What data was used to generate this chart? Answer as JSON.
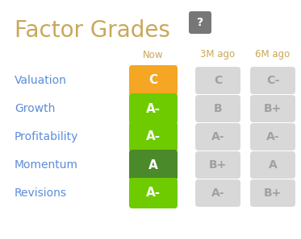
{
  "title": "Factor Grades",
  "bg_color": "#ffffff",
  "title_color": "#c8a85a",
  "label_color": "#5b8dd9",
  "header_color": "#c8a85a",
  "factors": [
    "Valuation",
    "Growth",
    "Profitability",
    "Momentum",
    "Revisions"
  ],
  "headers": [
    "Now",
    "3M ago",
    "6M ago"
  ],
  "now_grades": [
    "C",
    "A-",
    "A-",
    "A",
    "A-"
  ],
  "now_colors": [
    "#f5a623",
    "#6ecb00",
    "#6ecb00",
    "#4a8a2a",
    "#6ecb00"
  ],
  "ago3m_grades": [
    "C",
    "B",
    "A-",
    "B+",
    "A-"
  ],
  "ago6m_grades": [
    "C-",
    "B+",
    "A-",
    "A",
    "B+"
  ],
  "gray_bg": "#d8d8d8",
  "gray_text": "#a0a0a0",
  "white_text": "#ffffff",
  "qmark_color": "#777777"
}
